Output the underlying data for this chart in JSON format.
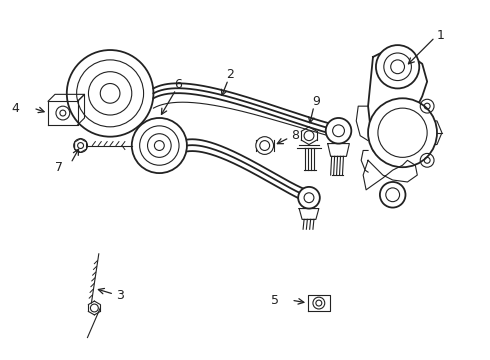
{
  "bg_color": "#ffffff",
  "line_color": "#222222",
  "fig_width": 4.9,
  "fig_height": 3.6,
  "dpi": 100,
  "lw": 1.3,
  "lw_thin": 0.8
}
